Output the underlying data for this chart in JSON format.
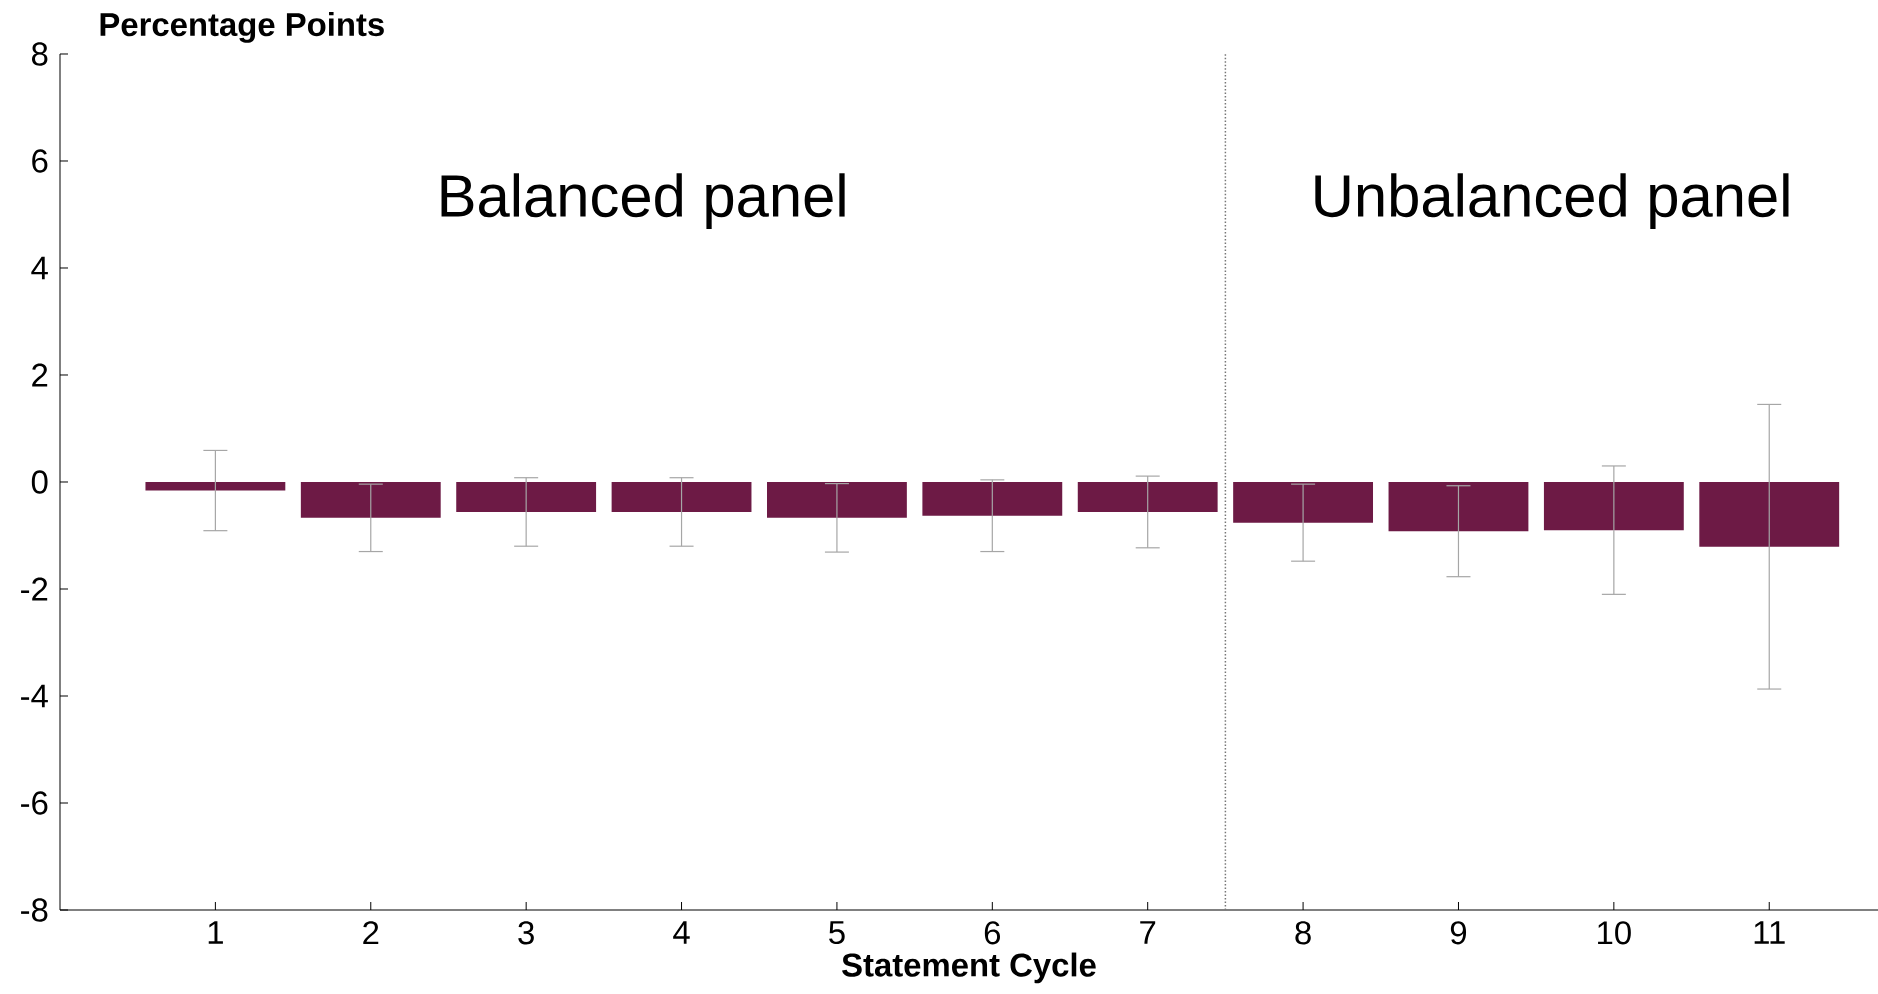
{
  "chart_data": {
    "type": "bar",
    "ylabel": "Percentage Points",
    "xlabel": "Statement Cycle",
    "x": [
      1,
      2,
      3,
      4,
      5,
      6,
      7,
      8,
      9,
      10,
      11
    ],
    "values": [
      -0.16,
      -0.67,
      -0.56,
      -0.56,
      -0.67,
      -0.63,
      -0.56,
      -0.76,
      -0.92,
      -0.9,
      -1.21
    ],
    "errors": [
      0.75,
      0.63,
      0.64,
      0.64,
      0.64,
      0.67,
      0.67,
      0.72,
      0.85,
      1.2,
      2.66
    ],
    "color": "#6d1a45",
    "xlim": [
      0,
      11.7
    ],
    "xticks": [
      1,
      2,
      3,
      4,
      5,
      6,
      7,
      8,
      9,
      10,
      11
    ],
    "ylim": [
      -8,
      8
    ],
    "yticks": [
      -8,
      -6,
      -4,
      -2,
      0,
      2,
      4,
      6,
      8
    ],
    "ref_lines": [
      {
        "axis": "x",
        "value": 7.5,
        "line_style": "dotted",
        "color": "#777777"
      }
    ],
    "annotations": [
      "Balanced panel",
      "Unbalanced panel"
    ],
    "grid": false
  }
}
